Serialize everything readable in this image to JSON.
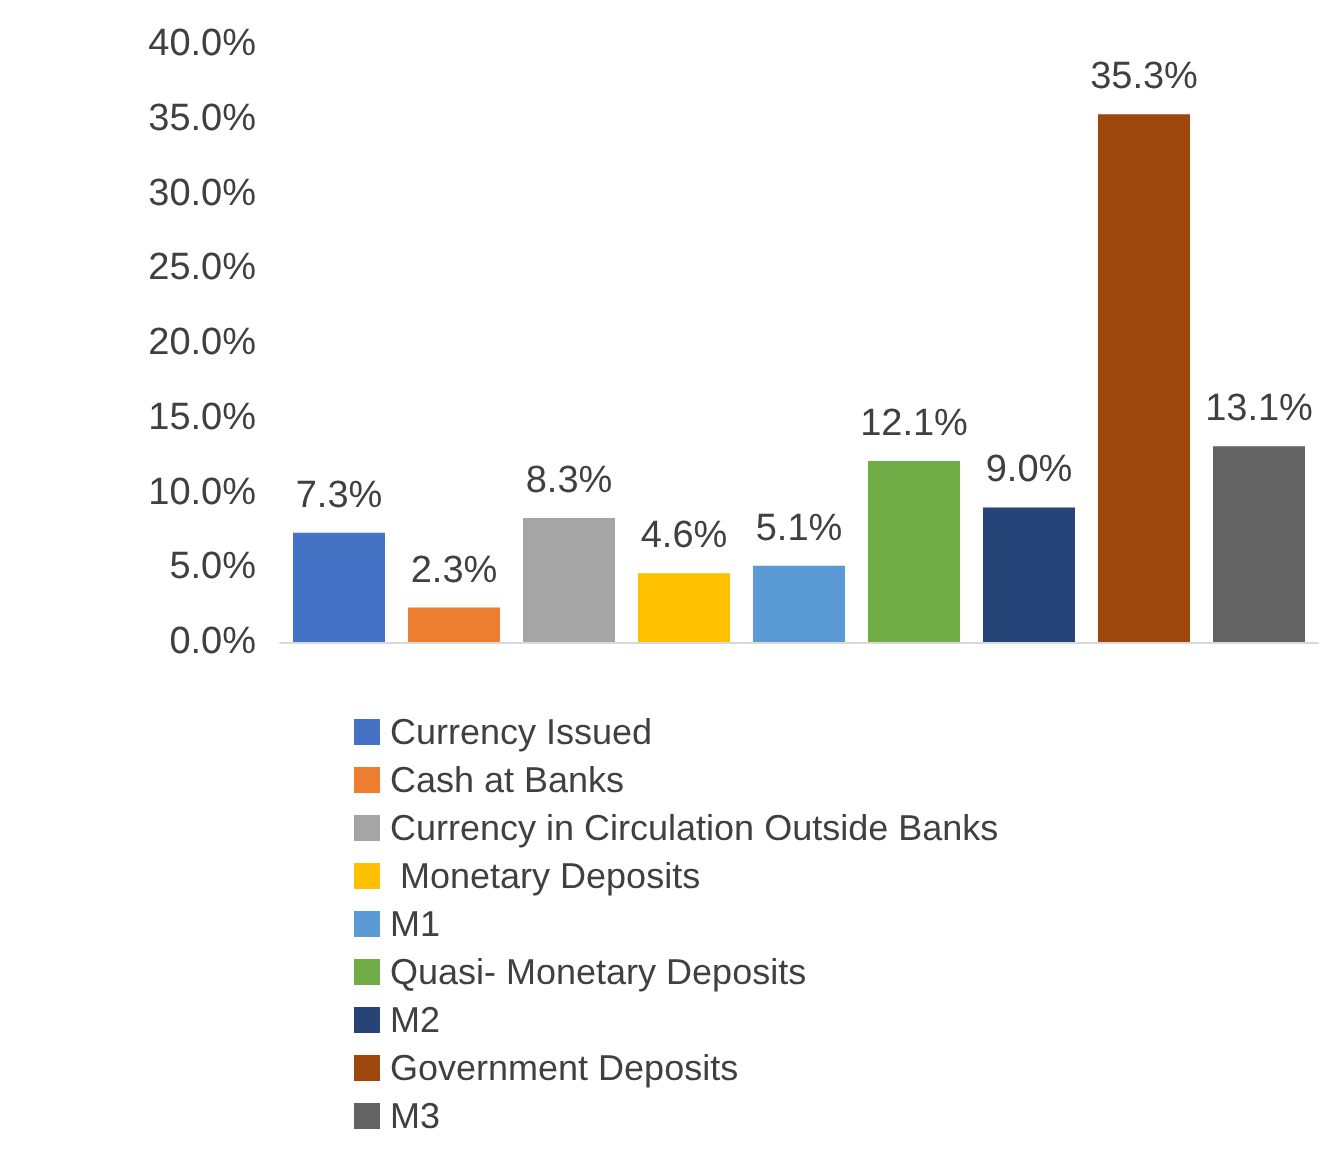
{
  "chart_data": {
    "type": "bar",
    "categories": [
      null
    ],
    "series": [
      {
        "name": "Currency Issued",
        "color": "#4472c4",
        "values": [
          7.3
        ],
        "value_labels": [
          "7.3%"
        ]
      },
      {
        "name": "Cash at Banks",
        "color": "#ed7d31",
        "values": [
          2.3
        ],
        "value_labels": [
          "2.3%"
        ]
      },
      {
        "name": "Currency in Circulation Outside Banks",
        "color": "#a5a5a5",
        "values": [
          8.3
        ],
        "value_labels": [
          "8.3%"
        ]
      },
      {
        "name": " Monetary Deposits",
        "color": "#ffc000",
        "values": [
          4.6
        ],
        "value_labels": [
          "4.6%"
        ]
      },
      {
        "name": "M1",
        "color": "#5b9bd5",
        "values": [
          5.1
        ],
        "value_labels": [
          "5.1%"
        ]
      },
      {
        "name": "Quasi- Monetary Deposits",
        "color": "#70ad47",
        "values": [
          12.1
        ],
        "value_labels": [
          "12.1%"
        ]
      },
      {
        "name": "M2",
        "color": "#264478",
        "values": [
          9.0
        ],
        "value_labels": [
          "9.0%"
        ]
      },
      {
        "name": "Government Deposits",
        "color": "#9e480e",
        "values": [
          35.3
        ],
        "value_labels": [
          "35.3%"
        ]
      },
      {
        "name": "M3",
        "color": "#636363",
        "values": [
          13.1
        ],
        "value_labels": [
          "13.1%"
        ]
      }
    ],
    "ylim": [
      0,
      40
    ],
    "yticks": [
      {
        "value": 0,
        "label": "0.0%"
      },
      {
        "value": 5,
        "label": "5.0%"
      },
      {
        "value": 10,
        "label": "10.0%"
      },
      {
        "value": 15,
        "label": "15.0%"
      },
      {
        "value": 20,
        "label": "20.0%"
      },
      {
        "value": 25,
        "label": "25.0%"
      },
      {
        "value": 30,
        "label": "30.0%"
      },
      {
        "value": 35,
        "label": "35.0%"
      },
      {
        "value": 40,
        "label": "40.0%"
      }
    ],
    "grid": false,
    "legend": "bottom"
  }
}
